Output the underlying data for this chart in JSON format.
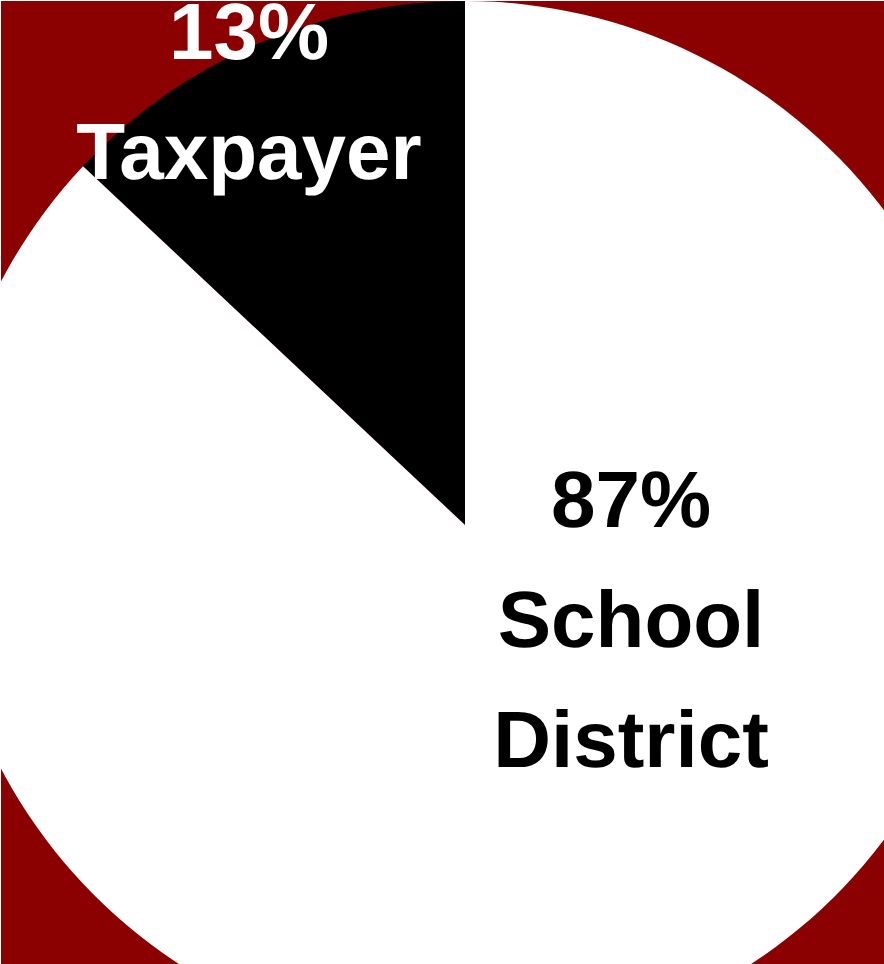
{
  "chart_data": {
    "type": "pie",
    "categories": [
      "Taxpayer",
      "School District"
    ],
    "values": [
      13,
      87
    ],
    "colors": [
      "#000000",
      "#ffffff"
    ],
    "value_labels": [
      "13%",
      "87%"
    ]
  }
}
